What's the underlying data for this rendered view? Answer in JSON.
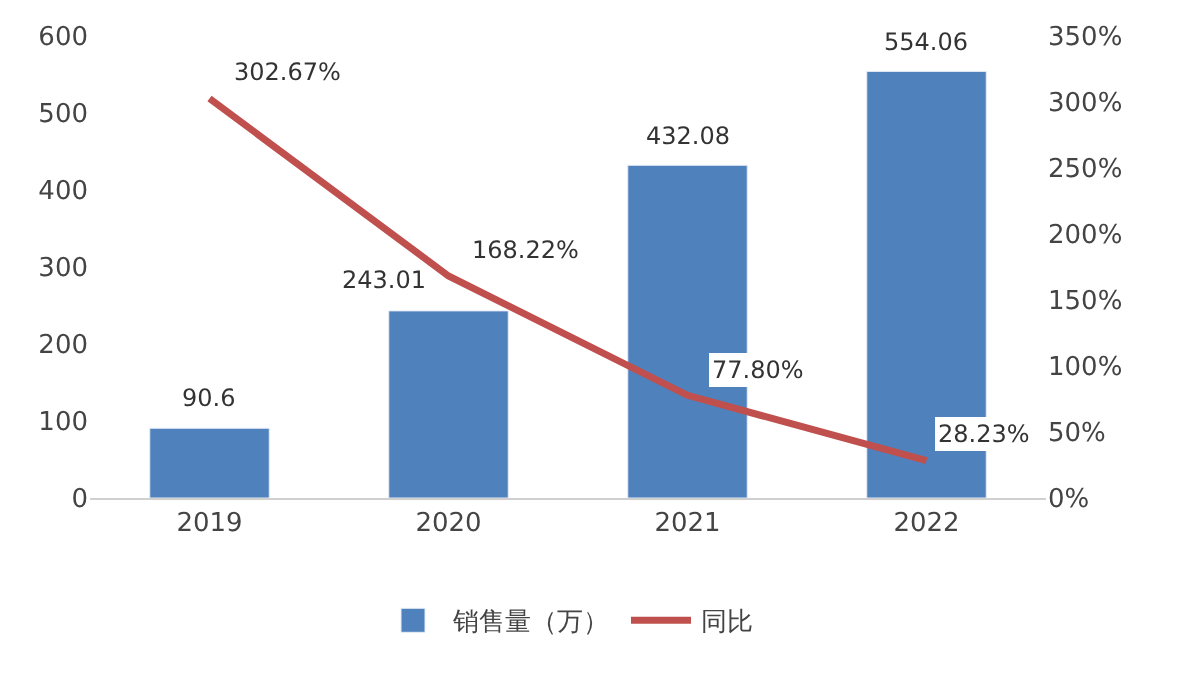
{
  "chart_data": {
    "type": "bar",
    "categories": [
      "2019",
      "2020",
      "2021",
      "2022"
    ],
    "series": [
      {
        "name": "销售量（万）",
        "color": "#4f81bd",
        "values": [
          90.6,
          243.01,
          432.08,
          554.06
        ],
        "value_labels": [
          "90.6",
          "243.01",
          "432.08",
          "554.06"
        ]
      },
      {
        "name": "同比",
        "type": "line",
        "axis": "y2",
        "color": "#c0504d",
        "values": [
          302.67,
          168.22,
          77.8,
          28.23
        ],
        "value_labels": [
          "302.67%",
          "168.22%",
          "77.80%",
          "28.23%"
        ]
      }
    ],
    "ylim": [
      0,
      600
    ],
    "yticks": [
      0,
      100,
      200,
      300,
      400,
      500,
      600
    ],
    "y2lim": [
      0,
      350
    ],
    "y2ticks": [
      {
        "value": 0,
        "label": "0%"
      },
      {
        "value": 50,
        "label": "50%"
      },
      {
        "value": 100,
        "label": "100%"
      },
      {
        "value": 150,
        "label": "150%"
      },
      {
        "value": 200,
        "label": "200%"
      },
      {
        "value": 250,
        "label": "250%"
      },
      {
        "value": 300,
        "label": "300%"
      },
      {
        "value": 350,
        "label": "350%"
      }
    ],
    "legend": "bottom",
    "marker": "none",
    "line_style": "solid"
  }
}
